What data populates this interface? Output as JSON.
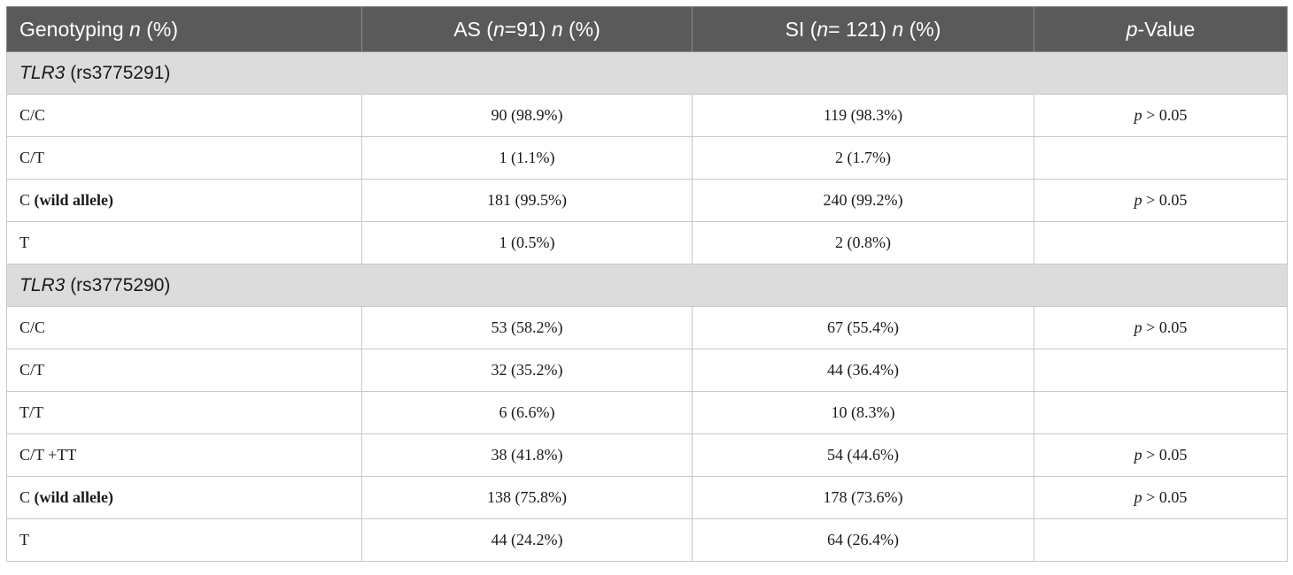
{
  "header": {
    "col1": {
      "text": "Genotyping ",
      "italic": "n",
      "suffix": " (%)"
    },
    "col2": {
      "text": "AS (",
      "italic1": "n",
      "mid": "=91) ",
      "italic2": "n",
      "suffix": " (%)"
    },
    "col3": {
      "text": "SI (",
      "italic1": "n",
      "mid": "= 121) ",
      "italic2": "n",
      "suffix": " (%)"
    },
    "col4": {
      "italic": "p",
      "suffix": "-Value"
    }
  },
  "sections": [
    {
      "gene": "TLR3",
      "snp": " (rs3775291)",
      "rows": [
        {
          "label": "C/C",
          "label_bold": "",
          "as": "90 (98.9%)",
          "si": "119 (98.3%)",
          "p_italic": "p",
          "p_rest": " > 0.05"
        },
        {
          "label": "C/T",
          "label_bold": "",
          "as": "1 (1.1%)",
          "si": "2 (1.7%)",
          "p_italic": "",
          "p_rest": ""
        },
        {
          "label": "C ",
          "label_bold": "(wild allele)",
          "as": "181 (99.5%)",
          "si": "240 (99.2%)",
          "p_italic": "p",
          "p_rest": " > 0.05"
        },
        {
          "label": "T",
          "label_bold": "",
          "as": "1 (0.5%)",
          "si": "2 (0.8%)",
          "p_italic": "",
          "p_rest": ""
        }
      ]
    },
    {
      "gene": "TLR3",
      "snp": " (rs3775290)",
      "rows": [
        {
          "label": "C/C",
          "label_bold": "",
          "as": "53 (58.2%)",
          "si": "67 (55.4%)",
          "p_italic": "p",
          "p_rest": " > 0.05"
        },
        {
          "label": "C/T",
          "label_bold": "",
          "as": "32 (35.2%)",
          "si": "44 (36.4%)",
          "p_italic": "",
          "p_rest": ""
        },
        {
          "label": "T/T",
          "label_bold": "",
          "as": "6 (6.6%)",
          "si": "10 (8.3%)",
          "p_italic": "",
          "p_rest": ""
        },
        {
          "label": "C/T +TT",
          "label_bold": "",
          "as": "38 (41.8%)",
          "si": "54 (44.6%)",
          "p_italic": "p",
          "p_rest": " > 0.05"
        },
        {
          "label": "C ",
          "label_bold": "(wild allele)",
          "as": "138 (75.8%)",
          "si": "178 (73.6%)",
          "p_italic": "p",
          "p_rest": " > 0.05"
        },
        {
          "label": "T",
          "label_bold": "",
          "as": "44 (24.2%)",
          "si": "64 (26.4%)",
          "p_italic": "",
          "p_rest": ""
        }
      ]
    }
  ]
}
